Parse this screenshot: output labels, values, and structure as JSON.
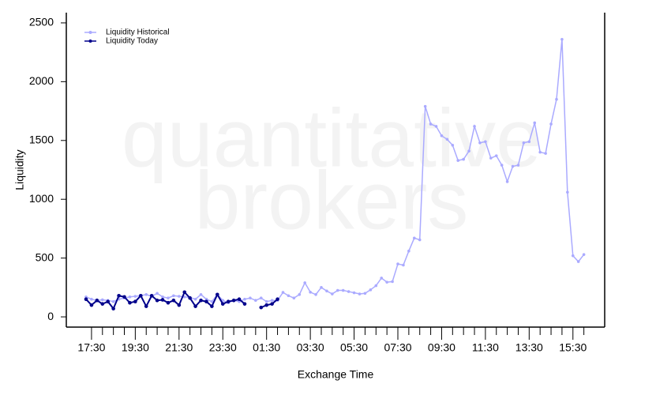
{
  "chart_data": {
    "type": "line",
    "watermark": [
      "quantitative",
      "brokers"
    ],
    "xlabel": "Exchange Time",
    "ylabel": "Liquidity",
    "categories": [
      null,
      "17:30",
      null,
      null,
      null,
      null,
      null,
      null,
      null,
      "19:30",
      null,
      null,
      null,
      null,
      null,
      null,
      null,
      "21:30",
      null,
      null,
      null,
      null,
      null,
      null,
      null,
      "23:30",
      null,
      null,
      null,
      null,
      null,
      null,
      null,
      "01:30",
      null,
      null,
      null,
      null,
      null,
      null,
      null,
      "03:30",
      null,
      null,
      null,
      null,
      null,
      null,
      null,
      "05:30",
      null,
      null,
      null,
      null,
      null,
      null,
      null,
      "07:30",
      null,
      null,
      null,
      null,
      null,
      null,
      null,
      "09:30",
      null,
      null,
      null,
      null,
      null,
      null,
      null,
      "11:30",
      null,
      null,
      null,
      null,
      null,
      null,
      null,
      "13:30",
      null,
      null,
      null,
      null,
      null,
      null,
      null,
      "15:30",
      null,
      null
    ],
    "ylim": [
      -87,
      2587
    ],
    "yticks": [
      0,
      500,
      1000,
      1500,
      2000,
      2500
    ],
    "legend": "top-left",
    "series": [
      {
        "name": "Liquidity Historical",
        "color": "#aaaaff",
        "values": [
          170,
          150,
          140,
          145,
          140,
          130,
          150,
          160,
          170,
          175,
          180,
          190,
          175,
          200,
          170,
          160,
          180,
          175,
          170,
          165,
          150,
          190,
          150,
          130,
          190,
          140,
          120,
          140,
          130,
          150,
          160,
          140,
          160,
          130,
          140,
          140,
          208,
          180,
          160,
          190,
          290,
          210,
          190,
          250,
          220,
          195,
          225,
          225,
          215,
          205,
          195,
          200,
          230,
          265,
          330,
          295,
          300,
          450,
          440,
          560,
          670,
          655,
          1790,
          1640,
          1620,
          1540,
          1510,
          1460,
          1330,
          1340,
          1410,
          1620,
          1480,
          1490,
          1350,
          1370,
          1290,
          1150,
          1280,
          1290,
          1480,
          1490,
          1650,
          1400,
          1390,
          1640,
          1850,
          2360,
          1060,
          520,
          470,
          530
        ]
      },
      {
        "name": "Liquidity Today",
        "color": "#00008b",
        "values": [
          150,
          100,
          140,
          110,
          130,
          70,
          180,
          170,
          120,
          130,
          180,
          90,
          180,
          140,
          145,
          120,
          140,
          100,
          210,
          160,
          90,
          140,
          130,
          90,
          190,
          110,
          130,
          140,
          150,
          110,
          null,
          null,
          80,
          100,
          110,
          150,
          null,
          null,
          null,
          null,
          null,
          null,
          null,
          null,
          null,
          null,
          null,
          null,
          null,
          null,
          null,
          null,
          null,
          null,
          null,
          null,
          null,
          null,
          null,
          null,
          null,
          null,
          null,
          null,
          null,
          null,
          null,
          null,
          null,
          null,
          null,
          null,
          null,
          null,
          null,
          null,
          null,
          null,
          null,
          null,
          null,
          null,
          null,
          null,
          null,
          null,
          null,
          null,
          null,
          null,
          null,
          null
        ]
      }
    ]
  }
}
